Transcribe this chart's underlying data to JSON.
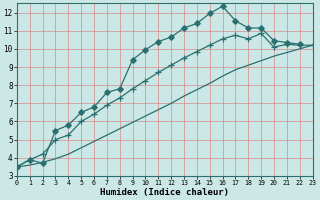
{
  "xlabel": "Humidex (Indice chaleur)",
  "bg_color": "#cce8e6",
  "grid_color": "#d98080",
  "line_color": "#2a7070",
  "xlim": [
    0,
    23
  ],
  "ylim": [
    3,
    12.5
  ],
  "xticks": [
    0,
    1,
    2,
    3,
    4,
    5,
    6,
    7,
    8,
    9,
    10,
    11,
    12,
    13,
    14,
    15,
    16,
    17,
    18,
    19,
    20,
    21,
    22,
    23
  ],
  "yticks": [
    3,
    4,
    5,
    6,
    7,
    8,
    9,
    10,
    11,
    12
  ],
  "series_diamond_x": [
    0,
    1,
    2,
    3,
    4,
    5,
    6,
    7,
    8,
    9,
    10,
    11,
    12,
    13,
    14,
    15,
    16,
    17,
    18,
    19,
    20,
    21,
    22
  ],
  "series_diamond_y": [
    3.5,
    3.9,
    3.7,
    5.5,
    5.8,
    6.5,
    6.8,
    7.6,
    7.8,
    9.4,
    9.95,
    10.4,
    10.65,
    11.15,
    11.4,
    11.95,
    12.35,
    11.55,
    11.15,
    11.15,
    10.45,
    10.35,
    10.25
  ],
  "series_plus_x": [
    0,
    1,
    2,
    3,
    4,
    5,
    6,
    7,
    8,
    9,
    10,
    11,
    12,
    13,
    14,
    15,
    16,
    17,
    18,
    19,
    20,
    21,
    22,
    23
  ],
  "series_plus_y": [
    3.5,
    3.9,
    4.2,
    5.0,
    5.25,
    6.0,
    6.4,
    6.9,
    7.3,
    7.8,
    8.25,
    8.7,
    9.1,
    9.5,
    9.85,
    10.2,
    10.55,
    10.75,
    10.55,
    10.85,
    10.1,
    10.25,
    10.2,
    10.2
  ],
  "series_plain_x": [
    0,
    1,
    2,
    3,
    4,
    5,
    6,
    7,
    8,
    9,
    10,
    11,
    12,
    13,
    14,
    15,
    16,
    17,
    18,
    19,
    20,
    21,
    22,
    23
  ],
  "series_plain_y": [
    3.5,
    3.6,
    3.75,
    3.95,
    4.2,
    4.55,
    4.9,
    5.25,
    5.6,
    5.95,
    6.3,
    6.65,
    7.0,
    7.4,
    7.75,
    8.1,
    8.5,
    8.85,
    9.1,
    9.35,
    9.6,
    9.8,
    10.0,
    10.2
  ]
}
